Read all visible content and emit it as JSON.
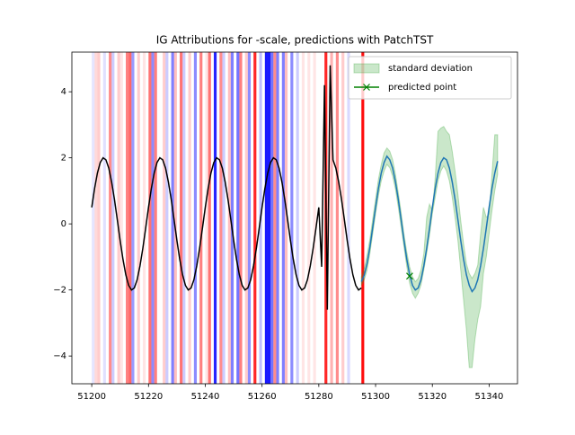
{
  "chart_data": {
    "type": "attribution_forecast",
    "title": "IG Attributions for -scale, predictions with PatchTST",
    "xlim": [
      51193,
      51350
    ],
    "ylim": [
      -4.84,
      5.2
    ],
    "xticks": [
      51200,
      51220,
      51240,
      51260,
      51280,
      51300,
      51320,
      51340
    ],
    "yticks": [
      {
        "value": -4,
        "label": "−4"
      },
      {
        "value": -2,
        "label": "−2"
      },
      0,
      2,
      4
    ],
    "legend": "upper right",
    "attributions": {
      "positive_color": "#ff0000",
      "negative_color": "#0000ff",
      "x": [
        51200,
        51201,
        51202,
        51204,
        51206,
        51207,
        51209,
        51210,
        51212,
        51213,
        51214,
        51216,
        51218,
        51220,
        51221,
        51222,
        51225,
        51226,
        51228,
        51229,
        51231,
        51232,
        51234,
        51236,
        51238,
        51240,
        51241,
        51243,
        51245,
        51246,
        51248,
        51249,
        51251,
        51252,
        51254,
        51255,
        51257,
        51259,
        51261,
        51262,
        51263,
        51264,
        51265,
        51267,
        51268,
        51270,
        51272,
        51274,
        51276,
        51278,
        51282,
        51284,
        51286,
        51288,
        51290,
        51295
      ],
      "values": [
        -0.1,
        0.15,
        0.2,
        -0.12,
        0.45,
        -0.2,
        0.2,
        0.1,
        0.5,
        0.6,
        -0.4,
        0.2,
        0.1,
        0.55,
        -0.45,
        0.5,
        0.2,
        -0.2,
        -0.5,
        0.25,
        0.55,
        -0.2,
        0.2,
        -0.45,
        0.5,
        0.1,
        0.55,
        -0.85,
        0.45,
        -0.2,
        0.25,
        -0.5,
        -0.55,
        0.5,
        0.2,
        -0.45,
        0.85,
        -0.25,
        -0.9,
        -0.9,
        -0.55,
        0.45,
        -0.5,
        -0.5,
        0.25,
        -0.45,
        -0.2,
        0.1,
        0.1,
        0.1,
        0.85,
        0.3,
        0.45,
        0.2,
        -0.15,
        0.95
      ]
    },
    "history": {
      "color": "#000000",
      "x": [
        51200,
        51201,
        51202,
        51203,
        51204,
        51205,
        51206,
        51207,
        51208,
        51209,
        51210,
        51211,
        51212,
        51213,
        51214,
        51215,
        51216,
        51217,
        51218,
        51219,
        51220,
        51221,
        51222,
        51223,
        51224,
        51225,
        51226,
        51227,
        51228,
        51229,
        51230,
        51231,
        51232,
        51233,
        51234,
        51235,
        51236,
        51237,
        51238,
        51239,
        51240,
        51241,
        51242,
        51243,
        51244,
        51245,
        51246,
        51247,
        51248,
        51249,
        51250,
        51251,
        51252,
        51253,
        51254,
        51255,
        51256,
        51257,
        51258,
        51259,
        51260,
        51261,
        51262,
        51263,
        51264,
        51265,
        51266,
        51267,
        51268,
        51269,
        51270,
        51271,
        51272,
        51273,
        51274,
        51275,
        51276,
        51277,
        51278,
        51279,
        51280,
        51281,
        51282,
        51283,
        51284,
        51285,
        51286,
        51287,
        51288,
        51289,
        51290,
        51291,
        51292,
        51293,
        51294,
        51295
      ],
      "values": [
        0.5,
        1.07,
        1.54,
        1.86,
        2.0,
        1.94,
        1.69,
        1.27,
        0.74,
        0.13,
        -0.5,
        -1.07,
        -1.54,
        -1.86,
        -2.0,
        -1.94,
        -1.69,
        -1.27,
        -0.74,
        -0.13,
        0.5,
        1.07,
        1.54,
        1.86,
        2.0,
        1.94,
        1.69,
        1.27,
        0.74,
        0.13,
        -0.5,
        -1.07,
        -1.54,
        -1.86,
        -2.0,
        -1.94,
        -1.69,
        -1.27,
        -0.74,
        -0.13,
        0.5,
        1.07,
        1.54,
        1.86,
        2.0,
        1.94,
        1.69,
        1.27,
        0.74,
        0.13,
        -0.5,
        -1.07,
        -1.54,
        -1.86,
        -2.0,
        -1.94,
        -1.69,
        -1.27,
        -0.74,
        -0.13,
        0.5,
        1.07,
        1.54,
        1.86,
        2.0,
        1.94,
        1.69,
        1.27,
        0.74,
        0.13,
        -0.5,
        -1.07,
        -1.54,
        -1.86,
        -2.0,
        -1.94,
        -1.69,
        -1.27,
        -0.74,
        -0.13,
        0.5,
        -1.3,
        4.2,
        -2.6,
        4.8,
        1.94,
        1.69,
        1.27,
        0.74,
        0.13,
        -0.5,
        -1.07,
        -1.54,
        -1.86,
        -2.0,
        -1.94
      ]
    },
    "forecast": {
      "color": "#1f77b4",
      "x": [
        51295,
        51296,
        51297,
        51298,
        51299,
        51300,
        51301,
        51302,
        51303,
        51304,
        51305,
        51306,
        51307,
        51308,
        51309,
        51310,
        51311,
        51312,
        51313,
        51314,
        51315,
        51316,
        51317,
        51318,
        51319,
        51320,
        51321,
        51322,
        51323,
        51324,
        51325,
        51326,
        51327,
        51328,
        51329,
        51330,
        51331,
        51332,
        51333,
        51334,
        51335,
        51336,
        51337,
        51338,
        51339,
        51340,
        51341,
        51342,
        51343
      ],
      "values": [
        -1.75,
        -1.55,
        -1.2,
        -0.7,
        -0.1,
        0.5,
        1.07,
        1.54,
        1.86,
        2.05,
        1.94,
        1.69,
        1.27,
        0.74,
        0.13,
        -0.5,
        -1.07,
        -1.54,
        -1.86,
        -2.0,
        -1.94,
        -1.69,
        -1.27,
        -0.74,
        -0.13,
        0.5,
        1.07,
        1.54,
        1.86,
        2.0,
        1.94,
        1.69,
        1.27,
        0.74,
        0.13,
        -0.5,
        -1.07,
        -1.54,
        -1.86,
        -2.05,
        -1.94,
        -1.69,
        -1.27,
        -0.74,
        -0.13,
        0.5,
        1.07,
        1.54,
        1.9
      ]
    },
    "band": {
      "name": "standard deviation",
      "color": "#2ca02c",
      "lower": [
        -1.85,
        -1.7,
        -1.4,
        -0.9,
        -0.3,
        0.3,
        0.85,
        1.3,
        1.6,
        1.8,
        1.7,
        1.45,
        1.05,
        0.5,
        -0.1,
        -0.7,
        -1.3,
        -1.8,
        -2.1,
        -2.25,
        -2.1,
        -1.85,
        -1.4,
        -0.9,
        -0.35,
        0.3,
        0.8,
        1.3,
        1.6,
        1.75,
        1.6,
        1.3,
        0.8,
        0.2,
        -0.5,
        -1.4,
        -2.3,
        -3.2,
        -4.35,
        -4.35,
        -3.5,
        -2.9,
        -2.5,
        -1.5,
        -1.0,
        -0.3,
        0.4,
        1.0,
        1.5
      ],
      "upper": [
        -1.6,
        -1.35,
        -0.95,
        -0.45,
        0.15,
        0.75,
        1.35,
        1.8,
        2.15,
        2.3,
        2.2,
        1.95,
        1.5,
        0.95,
        0.35,
        -0.3,
        -0.85,
        -1.3,
        -1.6,
        -1.75,
        -1.65,
        -1.4,
        -0.9,
        0.2,
        0.6,
        0.4,
        1.4,
        2.8,
        2.9,
        2.95,
        2.8,
        2.7,
        2.2,
        1.6,
        0.9,
        0.1,
        -0.6,
        -1.2,
        -1.5,
        -1.65,
        -1.5,
        -1.25,
        -0.3,
        0.5,
        0.2,
        0.3,
        1.5,
        2.7,
        2.7
      ]
    },
    "predicted": {
      "name": "predicted point",
      "color": "#008000",
      "x": 51312,
      "value": -1.58
    }
  }
}
